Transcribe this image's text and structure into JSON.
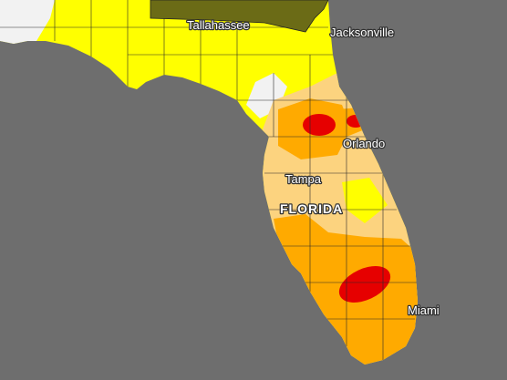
{
  "map": {
    "labels": [
      "Tallahassee",
      "Jacksonville",
      "Orlando",
      "Tampa",
      "FLORIDA",
      "Miami"
    ]
  }
}
